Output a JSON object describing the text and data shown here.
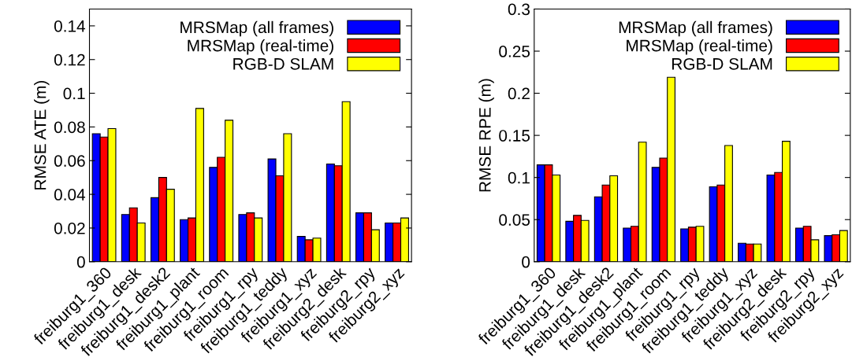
{
  "chart_data": [
    {
      "type": "bar",
      "ylabel": "RMSE ATE (m)",
      "categories": [
        "freiburg1_360",
        "freiburg1_desk",
        "freiburg1_desk2",
        "freiburg1_plant",
        "freiburg1_room",
        "freiburg1_rpy",
        "freiburg1_teddy",
        "freiburg1_xyz",
        "freiburg2_desk",
        "freiburg2_rpy",
        "freiburg2_xyz"
      ],
      "series": [
        {
          "name": "MRSMap (all frames)",
          "color": "#0000ff",
          "values": [
            0.076,
            0.028,
            0.038,
            0.025,
            0.056,
            0.028,
            0.061,
            0.015,
            0.058,
            0.029,
            0.023
          ]
        },
        {
          "name": "MRSMap (real-time)",
          "color": "#ff0000",
          "values": [
            0.074,
            0.032,
            0.05,
            0.026,
            0.062,
            0.029,
            0.051,
            0.013,
            0.057,
            0.029,
            0.023
          ]
        },
        {
          "name": "RGB-D SLAM",
          "color": "#ffff00",
          "values": [
            0.079,
            0.023,
            0.043,
            0.091,
            0.084,
            0.026,
            0.076,
            0.014,
            0.095,
            0.019,
            0.026
          ]
        }
      ],
      "ylim": [
        0,
        0.15
      ],
      "yticks": [
        0,
        0.02,
        0.04,
        0.06,
        0.08,
        0.1,
        0.12,
        0.14
      ],
      "legend": "top right",
      "grid": false
    },
    {
      "type": "bar",
      "ylabel": "RMSE RPE (m)",
      "categories": [
        "freiburg1_360",
        "freiburg1_desk",
        "freiburg1_desk2",
        "freiburg1_plant",
        "freiburg1_room",
        "freiburg1_rpy",
        "freiburg1_teddy",
        "freiburg1_xyz",
        "freiburg2_desk",
        "freiburg2_rpy",
        "freiburg2_xyz"
      ],
      "series": [
        {
          "name": "MRSMap (all frames)",
          "color": "#0000ff",
          "values": [
            0.115,
            0.048,
            0.077,
            0.04,
            0.112,
            0.039,
            0.089,
            0.022,
            0.103,
            0.04,
            0.031
          ]
        },
        {
          "name": "MRSMap (real-time)",
          "color": "#ff0000",
          "values": [
            0.115,
            0.055,
            0.091,
            0.042,
            0.123,
            0.041,
            0.091,
            0.021,
            0.106,
            0.042,
            0.032
          ]
        },
        {
          "name": "RGB-D SLAM",
          "color": "#ffff00",
          "values": [
            0.103,
            0.049,
            0.102,
            0.142,
            0.219,
            0.042,
            0.138,
            0.021,
            0.143,
            0.026,
            0.037
          ]
        }
      ],
      "ylim": [
        0,
        0.3
      ],
      "yticks": [
        0,
        0.05,
        0.1,
        0.15,
        0.2,
        0.25,
        0.3
      ],
      "legend": "top right",
      "grid": false
    }
  ]
}
